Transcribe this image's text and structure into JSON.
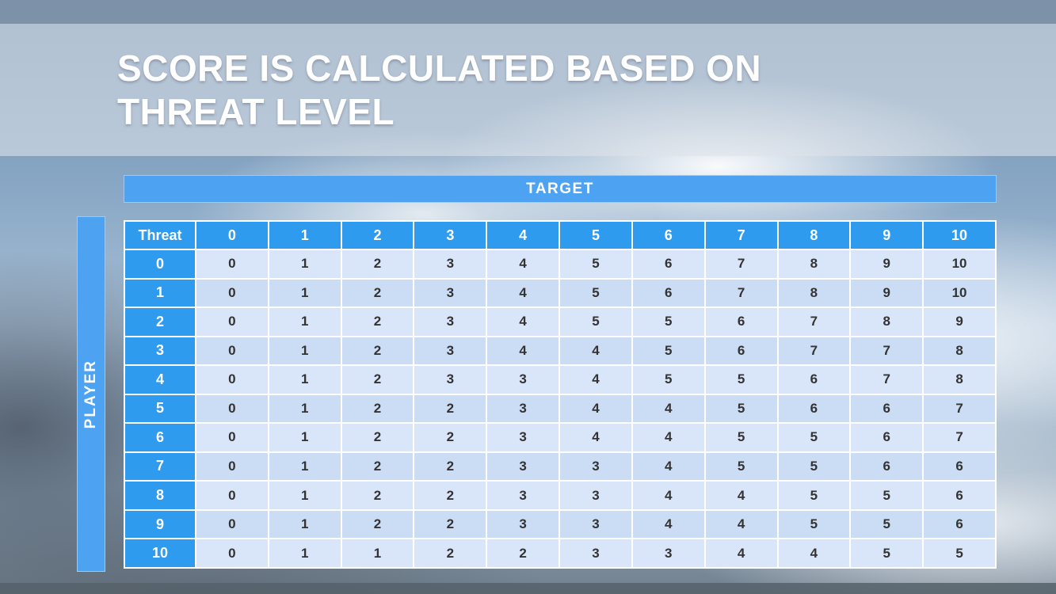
{
  "slide": {
    "title_line1": "SCORE IS CALCULATED BASED ON",
    "title_line2": "THREAT LEVEL"
  },
  "table": {
    "target_label": "TARGET",
    "player_label": "PLAYER",
    "corner_label": "Threat",
    "column_headers": [
      "0",
      "1",
      "2",
      "3",
      "4",
      "5",
      "6",
      "7",
      "8",
      "9",
      "10"
    ],
    "rows": [
      {
        "threat": "0",
        "values": [
          "0",
          "1",
          "2",
          "3",
          "4",
          "5",
          "6",
          "7",
          "8",
          "9",
          "10"
        ]
      },
      {
        "threat": "1",
        "values": [
          "0",
          "1",
          "2",
          "3",
          "4",
          "5",
          "6",
          "7",
          "8",
          "9",
          "10"
        ]
      },
      {
        "threat": "2",
        "values": [
          "0",
          "1",
          "2",
          "3",
          "4",
          "5",
          "5",
          "6",
          "7",
          "8",
          "9"
        ]
      },
      {
        "threat": "3",
        "values": [
          "0",
          "1",
          "2",
          "3",
          "4",
          "4",
          "5",
          "6",
          "7",
          "7",
          "8"
        ]
      },
      {
        "threat": "4",
        "values": [
          "0",
          "1",
          "2",
          "3",
          "3",
          "4",
          "5",
          "5",
          "6",
          "7",
          "8"
        ]
      },
      {
        "threat": "5",
        "values": [
          "0",
          "1",
          "2",
          "2",
          "3",
          "4",
          "4",
          "5",
          "6",
          "6",
          "7"
        ]
      },
      {
        "threat": "6",
        "values": [
          "0",
          "1",
          "2",
          "2",
          "3",
          "4",
          "4",
          "5",
          "5",
          "6",
          "7"
        ]
      },
      {
        "threat": "7",
        "values": [
          "0",
          "1",
          "2",
          "2",
          "3",
          "3",
          "4",
          "5",
          "5",
          "6",
          "6"
        ]
      },
      {
        "threat": "8",
        "values": [
          "0",
          "1",
          "2",
          "2",
          "3",
          "3",
          "4",
          "4",
          "5",
          "5",
          "6"
        ]
      },
      {
        "threat": "9",
        "values": [
          "0",
          "1",
          "2",
          "2",
          "3",
          "3",
          "4",
          "4",
          "5",
          "5",
          "6"
        ]
      },
      {
        "threat": "10",
        "values": [
          "0",
          "1",
          "1",
          "2",
          "2",
          "3",
          "3",
          "4",
          "4",
          "5",
          "5"
        ]
      }
    ]
  },
  "colors": {
    "header_blue": "#2f9bee",
    "banner_blue": "#4da2f2",
    "row_even": "#d9e5f8",
    "row_odd": "#cbdcf5",
    "top_bar": "#7d92a9"
  }
}
